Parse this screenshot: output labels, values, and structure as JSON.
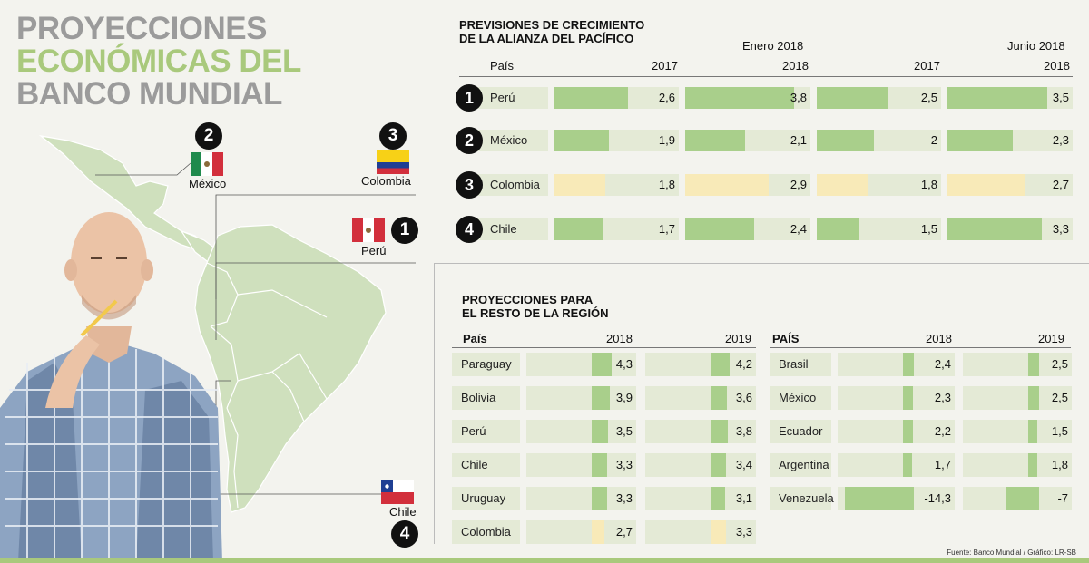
{
  "title": {
    "line1": "PROYECCIONES",
    "line2": "ECONÓMICAS DEL",
    "line3": "BANCO MUNDIAL"
  },
  "map": {
    "markers": [
      {
        "rank": "2",
        "label": "México",
        "flag": "mexico"
      },
      {
        "rank": "3",
        "label": "Colombia",
        "flag": "colombia"
      },
      {
        "rank": "1",
        "label": "Perú",
        "flag": "peru"
      },
      {
        "rank": "4",
        "label": "Chile",
        "flag": "chile"
      }
    ]
  },
  "colors": {
    "bar_green": "#a9cf8b",
    "bar_yellow": "#f8eab8",
    "cell_bg": "#e4ead6",
    "title_green": "#a9c97c",
    "title_gray": "#9b9b9b"
  },
  "chart_data": [
    {
      "type": "bar",
      "title": "PREVISIONES DE CRECIMIENTO DE LA ALIANZA DEL PACÍFICO",
      "title_line1": "PREVISIONES DE CRECIMIENTO",
      "title_line2": "DE LA ALIANZA DEL PACÍFICO",
      "col_header": "País",
      "groups": [
        {
          "name": "Enero 2018",
          "years": [
            "2017",
            "2018"
          ]
        },
        {
          "name": "Junio 2018",
          "years": [
            "2017",
            "2018"
          ]
        }
      ],
      "categories": [
        "Perú",
        "México",
        "Colombia",
        "Chile"
      ],
      "ranks": [
        "1",
        "2",
        "3",
        "4"
      ],
      "series": [
        {
          "name": "Enero 2018 - 2017",
          "values": [
            2.6,
            1.9,
            1.8,
            1.7
          ],
          "labels": [
            "2,6",
            "1,9",
            "1,8",
            "1,7"
          ]
        },
        {
          "name": "Enero 2018 - 2018",
          "values": [
            3.8,
            2.1,
            2.9,
            2.4
          ],
          "labels": [
            "3,8",
            "2,1",
            "2,9",
            "2,4"
          ]
        },
        {
          "name": "Junio 2018 - 2017",
          "values": [
            2.5,
            2.0,
            1.8,
            1.5
          ],
          "labels": [
            "2,5",
            "2",
            "1,8",
            "1,5"
          ]
        },
        {
          "name": "Junio 2018 - 2018",
          "values": [
            3.5,
            2.3,
            2.7,
            3.3
          ],
          "labels": [
            "3,5",
            "2,3",
            "2,7",
            "3,3"
          ]
        }
      ],
      "highlight_category": "Colombia",
      "xlim": [
        0,
        3.8
      ]
    },
    {
      "type": "bar",
      "title": "PROYECCIONES PARA EL RESTO DE LA REGIÓN",
      "title_line1": "PROYECCIONES PARA",
      "title_line2": "EL RESTO DE LA REGIÓN",
      "tables": [
        {
          "col_header": "País",
          "years": [
            "2018",
            "2019"
          ],
          "categories": [
            "Paraguay",
            "Bolivia",
            "Perú",
            "Chile",
            "Uruguay",
            "Colombia"
          ],
          "series": [
            {
              "name": "2018",
              "values": [
                4.3,
                3.9,
                3.5,
                3.3,
                3.3,
                2.7
              ],
              "labels": [
                "4,3",
                "3,9",
                "3,5",
                "3,3",
                "3,3",
                "2,7"
              ]
            },
            {
              "name": "2019",
              "values": [
                4.2,
                3.6,
                3.8,
                3.4,
                3.1,
                3.3
              ],
              "labels": [
                "4,2",
                "3,6",
                "3,8",
                "3,4",
                "3,1",
                "3,3"
              ]
            }
          ],
          "highlight_category": "Colombia"
        },
        {
          "col_header": "PAÍS",
          "years": [
            "2018",
            "2019"
          ],
          "categories": [
            "Brasil",
            "México",
            "Ecuador",
            "Argentina",
            "Venezuela"
          ],
          "series": [
            {
              "name": "2018",
              "values": [
                2.4,
                2.3,
                2.2,
                1.7,
                -14.3
              ],
              "labels": [
                "2,4",
                "2,3",
                "2,2",
                "1,7",
                "-14,3"
              ]
            },
            {
              "name": "2019",
              "values": [
                2.5,
                2.5,
                1.5,
                1.8,
                -7
              ],
              "labels": [
                "2,5",
                "2,5",
                "1,5",
                "1,8",
                "-7"
              ]
            }
          ]
        }
      ]
    }
  ],
  "source": "Fuente: Banco Mundial  / Gráfico: LR-SB"
}
